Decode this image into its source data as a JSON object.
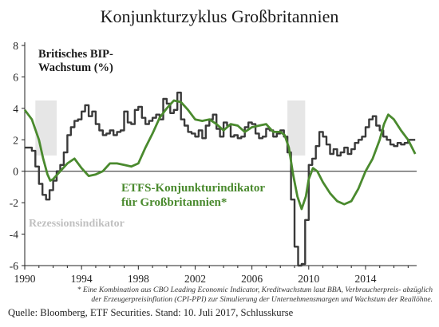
{
  "chart_data": {
    "type": "line",
    "title": "Konjunkturzyklus Großbritannien",
    "ylim": [
      -6,
      8
    ],
    "yticks": [
      -6,
      -4,
      -2,
      0,
      2,
      4,
      6,
      8
    ],
    "xlim": [
      1990,
      2017.6
    ],
    "xticks": [
      1990,
      1994,
      1998,
      2002,
      2006,
      2010,
      2014
    ],
    "grid": false,
    "recessions": [
      {
        "start": 1990.75,
        "end": 1992.25
      },
      {
        "start": 2008.5,
        "end": 2009.75
      }
    ],
    "recession_label": "Rezessionsindikator",
    "series": [
      {
        "name": "Britisches BIP-Wachstum (%)",
        "color": "#3a3a3a",
        "x": [
          1990.0,
          1990.5,
          1990.75,
          1991.0,
          1991.25,
          1991.5,
          1991.75,
          1992.0,
          1992.25,
          1992.5,
          1992.75,
          1993.0,
          1993.25,
          1993.5,
          1993.75,
          1994.0,
          1994.25,
          1994.5,
          1994.75,
          1995.0,
          1995.25,
          1995.5,
          1995.75,
          1996.0,
          1996.25,
          1996.5,
          1996.75,
          1997.0,
          1997.25,
          1997.5,
          1997.75,
          1998.0,
          1998.25,
          1998.5,
          1998.75,
          1999.0,
          1999.25,
          1999.5,
          1999.75,
          2000.0,
          2000.25,
          2000.5,
          2000.75,
          2001.0,
          2001.25,
          2001.5,
          2001.75,
          2002.0,
          2002.25,
          2002.5,
          2002.75,
          2003.0,
          2003.25,
          2003.5,
          2003.75,
          2004.0,
          2004.25,
          2004.5,
          2004.75,
          2005.0,
          2005.25,
          2005.5,
          2005.75,
          2006.0,
          2006.25,
          2006.5,
          2006.75,
          2007.0,
          2007.25,
          2007.5,
          2007.75,
          2008.0,
          2008.25,
          2008.5,
          2008.75,
          2009.0,
          2009.25,
          2009.5,
          2009.75,
          2010.0,
          2010.25,
          2010.5,
          2010.75,
          2011.0,
          2011.25,
          2011.5,
          2011.75,
          2012.0,
          2012.25,
          2012.5,
          2012.75,
          2013.0,
          2013.25,
          2013.5,
          2013.75,
          2014.0,
          2014.25,
          2014.5,
          2014.75,
          2015.0,
          2015.25,
          2015.5,
          2015.75,
          2016.0,
          2016.25,
          2016.5,
          2016.75,
          2017.0,
          2017.25,
          2017.5
        ],
        "y": [
          1.5,
          1.3,
          0.3,
          -0.8,
          -1.5,
          -1.8,
          -1.2,
          -0.6,
          0.0,
          0.4,
          1.2,
          2.3,
          2.8,
          3.2,
          3.3,
          3.8,
          4.2,
          3.5,
          3.8,
          3.0,
          2.6,
          2.3,
          2.4,
          2.6,
          2.3,
          2.5,
          2.6,
          3.8,
          3.1,
          3.0,
          3.9,
          4.1,
          3.4,
          3.0,
          3.2,
          3.4,
          3.6,
          3.3,
          4.6,
          4.3,
          3.7,
          3.9,
          5.0,
          3.3,
          2.9,
          2.5,
          2.4,
          2.2,
          2.6,
          2.1,
          2.9,
          3.3,
          3.6,
          2.7,
          2.2,
          3.1,
          2.9,
          2.2,
          2.3,
          2.1,
          2.2,
          2.8,
          3.1,
          3.0,
          2.4,
          2.1,
          2.2,
          2.7,
          2.6,
          2.2,
          2.4,
          2.6,
          2.2,
          1.2,
          -1.8,
          -4.8,
          -6.0,
          -5.9,
          -3.1,
          0.4,
          0.8,
          1.6,
          2.5,
          2.2,
          1.7,
          1.1,
          1.4,
          1.0,
          1.2,
          1.5,
          1.1,
          1.4,
          1.8,
          2.0,
          2.2,
          2.8,
          3.3,
          3.5,
          2.9,
          2.6,
          2.2,
          2.0,
          1.7,
          1.6,
          1.8,
          1.7,
          1.8,
          2.0,
          2.0,
          2.0
        ]
      },
      {
        "name": "ETFS-Konjunkturindikator für Großbritannien*",
        "color": "#4a8a2e",
        "x": [
          1990.0,
          1990.5,
          1991.0,
          1991.3,
          1991.6,
          1991.8,
          1992.0,
          1992.5,
          1993.0,
          1993.5,
          1994.0,
          1994.5,
          1995.0,
          1995.5,
          1996.0,
          1996.5,
          1997.0,
          1997.5,
          1998.0,
          1998.5,
          1999.0,
          1999.5,
          2000.0,
          2000.5,
          2001.0,
          2001.5,
          2002.0,
          2002.5,
          2003.0,
          2003.5,
          2004.0,
          2004.5,
          2005.0,
          2005.5,
          2006.0,
          2006.5,
          2007.0,
          2007.5,
          2008.0,
          2008.3,
          2008.6,
          2008.9,
          2009.2,
          2009.5,
          2009.8,
          2010.0,
          2010.3,
          2010.6,
          2011.0,
          2011.5,
          2012.0,
          2012.5,
          2013.0,
          2013.5,
          2014.0,
          2014.5,
          2015.0,
          2015.3,
          2015.6,
          2016.0,
          2016.5,
          2017.0,
          2017.5
        ],
        "y": [
          3.9,
          3.3,
          2.0,
          0.8,
          -0.2,
          -0.6,
          -0.5,
          0.0,
          0.5,
          0.8,
          0.2,
          -0.3,
          -0.2,
          0.0,
          0.5,
          0.5,
          0.4,
          0.3,
          0.5,
          1.5,
          2.4,
          3.4,
          4.0,
          4.5,
          4.4,
          3.9,
          3.3,
          3.2,
          3.3,
          3.0,
          2.6,
          3.0,
          2.9,
          2.5,
          2.8,
          2.9,
          3.0,
          2.5,
          2.5,
          2.3,
          1.5,
          -0.2,
          -1.6,
          -2.4,
          -1.6,
          -0.5,
          0.2,
          0.0,
          -0.7,
          -1.4,
          -1.9,
          -2.1,
          -1.9,
          -1.1,
          0.0,
          0.8,
          2.0,
          3.0,
          3.6,
          3.3,
          2.6,
          2.0,
          1.1
        ]
      }
    ]
  },
  "labels": {
    "gdp_legend_line1": "Britisches BIP-",
    "gdp_legend_line2": "Wachstum (%)",
    "indicator_legend_line1": "ETFS-Konjunkturindikator",
    "indicator_legend_line2": "für Großbritannien*"
  },
  "footnote_line1": "* Eine Kombination aus CBO Leading Economic Indicator, Kreditwachstum laut BBA, Verbraucherpreis- abzüglich",
  "footnote_line2": "der Erzeugerpreisinflation (CPI-PPI) zur Simulierung der Unternehmensmargen und Wachstum der Reallöhne.",
  "source": "Quelle: Bloomberg, ETF Securities. Stand: 10. Juli 2017, Schlusskurse"
}
